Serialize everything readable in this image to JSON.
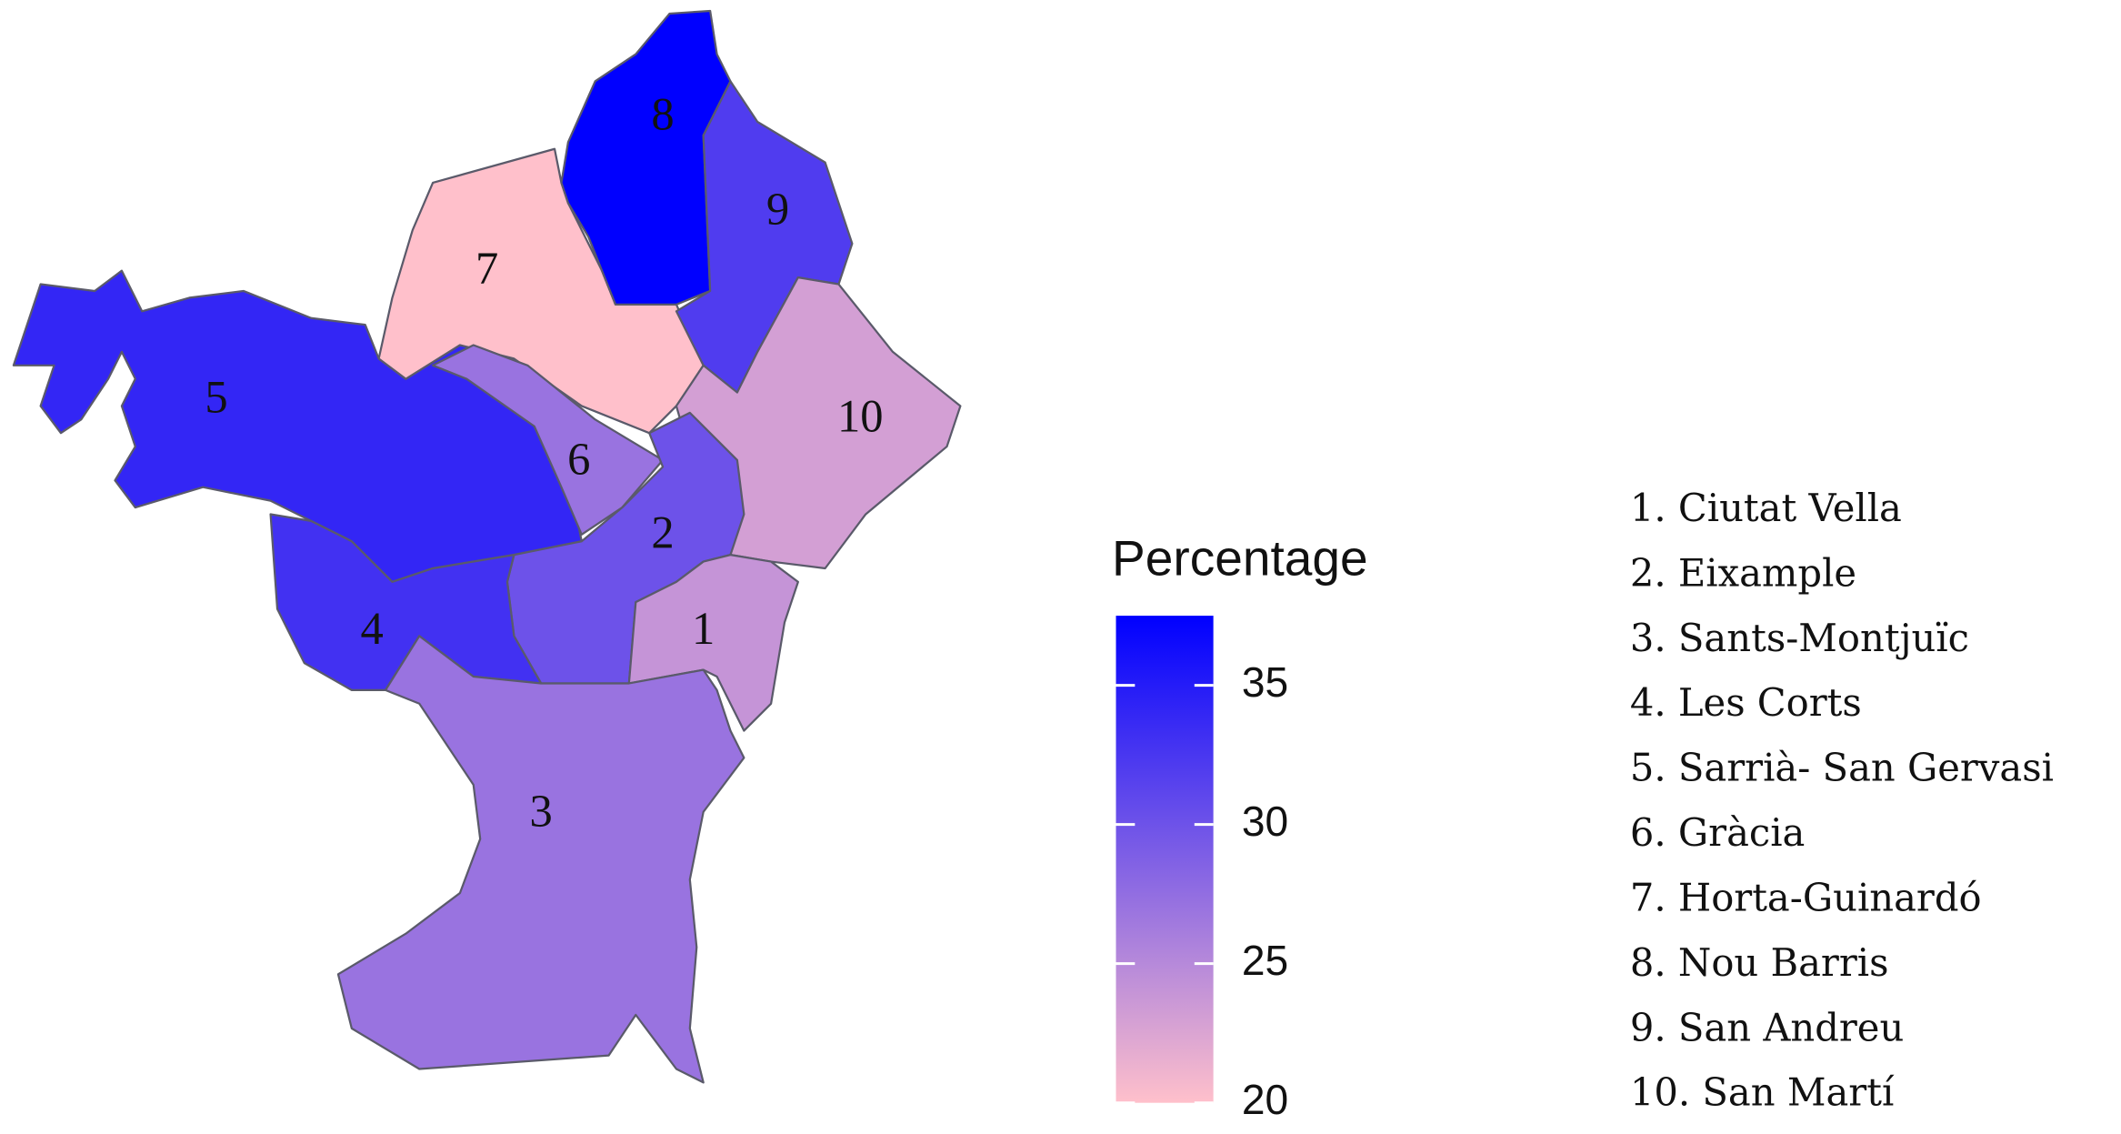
{
  "legend": {
    "title": "Percentage",
    "range": [
      20,
      37.5
    ],
    "ticks": [
      20,
      25,
      30,
      35
    ],
    "low_color": "#ffc0cb",
    "high_color": "#0000ff"
  },
  "districts": [
    {
      "map_label": "1",
      "list_label": "1. Ciutat Vella",
      "value": 24
    },
    {
      "map_label": "2",
      "list_label": "2. Eixample",
      "value": 30
    },
    {
      "map_label": "3",
      "list_label": "3. Sants-Montjuïc",
      "value": 27
    },
    {
      "map_label": "4",
      "list_label": "4. Les Corts",
      "value": 33
    },
    {
      "map_label": "5",
      "list_label": "5. Sarrià- San Gervasi",
      "value": 34
    },
    {
      "map_label": "6",
      "list_label": "6. Gràcia",
      "value": 27
    },
    {
      "map_label": "7",
      "list_label": "7. Horta-Guinardó",
      "value": 20
    },
    {
      "map_label": "8",
      "list_label": "8. Nou Barris",
      "value": 37.5
    },
    {
      "map_label": "9",
      "list_label": "9. San Andreu",
      "value": 32
    },
    {
      "map_label": "10",
      "list_label": "10. San Martí",
      "value": 23
    }
  ]
}
